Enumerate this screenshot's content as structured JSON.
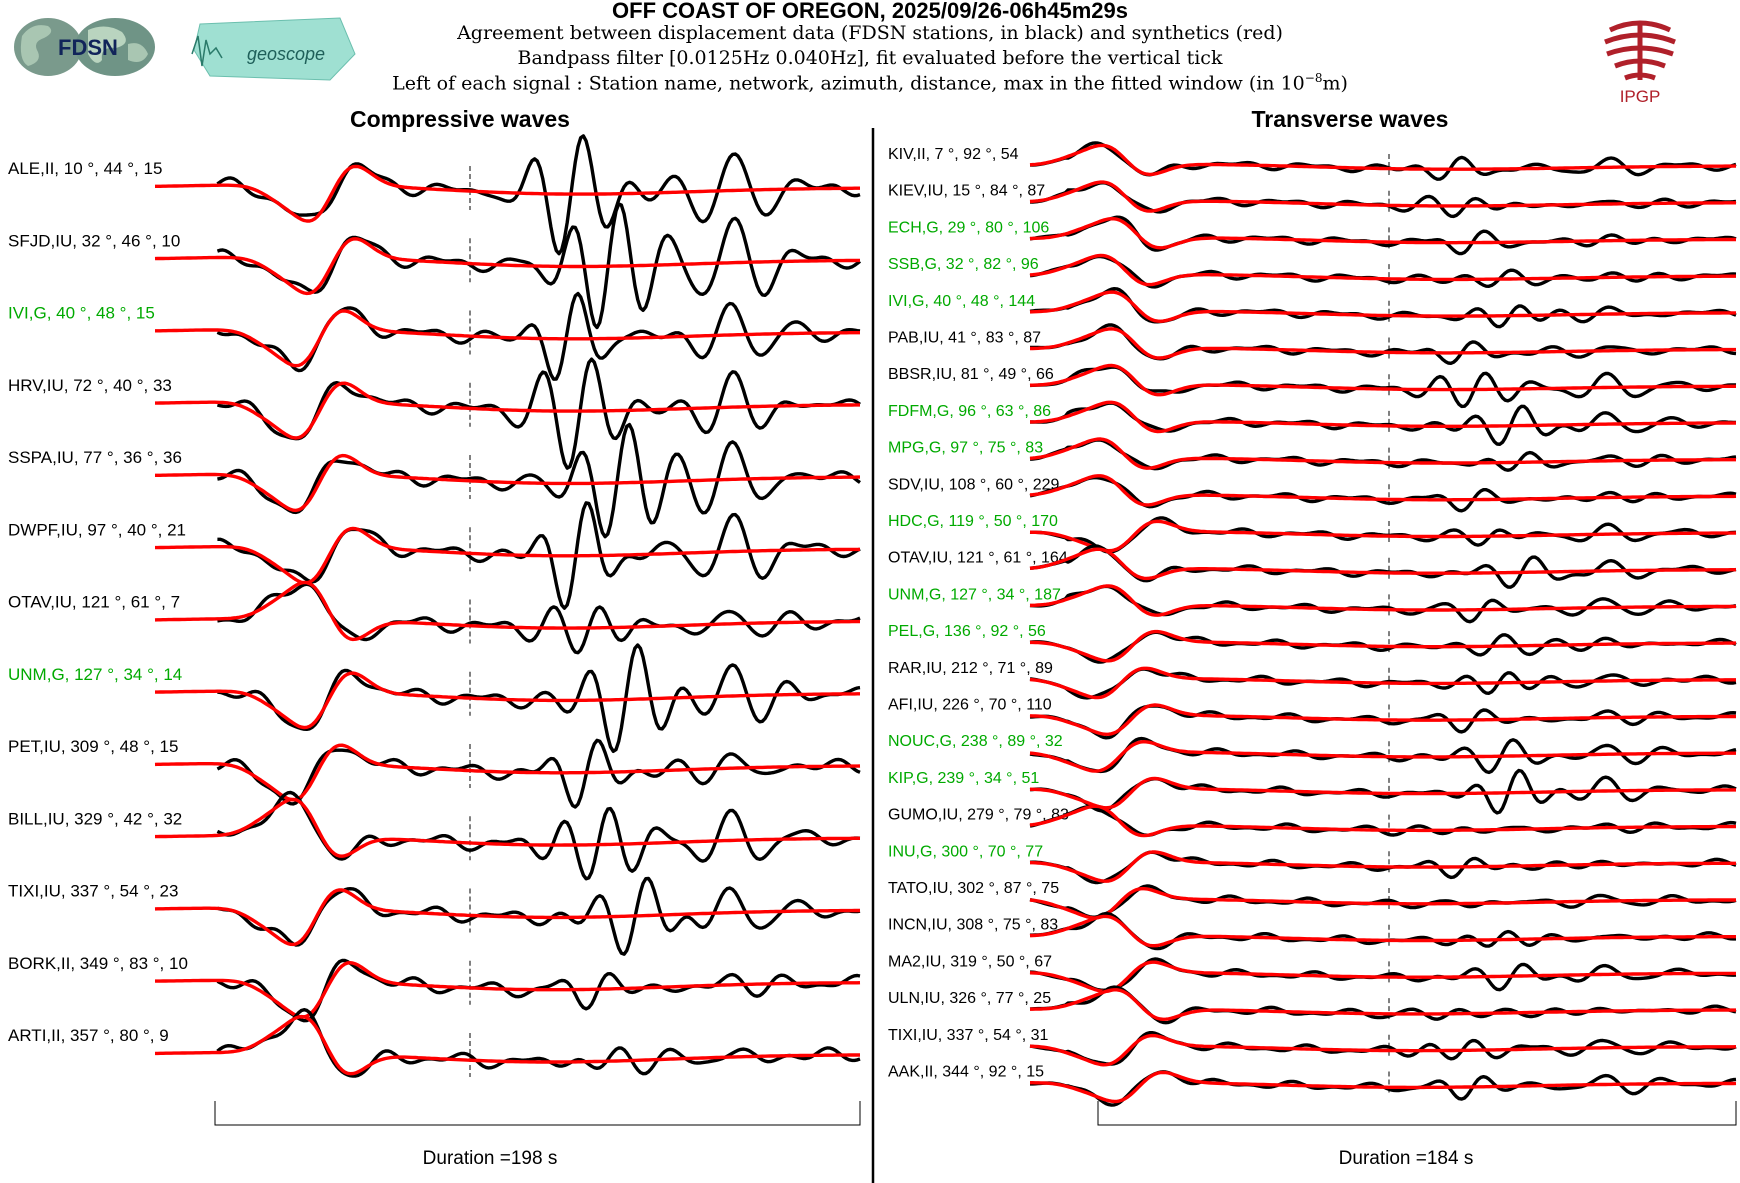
{
  "header": {
    "title": "OFF COAST OF OREGON, 2025/09/26-06h45m29s",
    "line1": "Agreement between displacement data (FDSN stations, in black) and synthetics (red)",
    "line2": "Bandpass filter [0.0125Hz 0.040Hz], fit evaluated before the vertical tick",
    "line3_prefix": "Left of each signal : Station name, network, azimuth, distance, max in the fitted window (in 10",
    "line3_exp": "−8",
    "line3_suffix": "m)"
  },
  "logos": {
    "fdsn": "FDSN",
    "geoscope": "geoscope",
    "ipgp": "IPGP"
  },
  "colors": {
    "data": "#000000",
    "synthetic": "#ff0000",
    "highlight_label": "#00aa00",
    "ipgp": "#b0202a",
    "geoscope": "#7fd6c6"
  },
  "panels": {
    "compressive": {
      "title": "Compressive waves",
      "duration_label": "Duration =198 s"
    },
    "transverse": {
      "title": "Transverse waves",
      "duration_label": "Duration =184 s"
    }
  },
  "chart_data": [
    {
      "type": "line",
      "title": "Compressive waves",
      "xlabel": "Duration =198 s",
      "duration_s": 198,
      "series_legend": [
        "data (black)",
        "synthetics (red)"
      ],
      "traces": [
        {
          "label": "ALE,II, 10 °, 44 °, 15",
          "station": "ALE",
          "network": "II",
          "azimuth": 10,
          "distance": 44,
          "max": 15,
          "green": false,
          "seed": 11,
          "late": 1.6
        },
        {
          "label": "SFJD,IU, 32 °, 46 °, 10",
          "station": "SFJD",
          "network": "IU",
          "azimuth": 32,
          "distance": 46,
          "max": 10,
          "green": false,
          "seed": 23,
          "late": 1.8
        },
        {
          "label": "IVI,G, 40 °, 48 °, 15",
          "station": "IVI",
          "network": "G",
          "azimuth": 40,
          "distance": 48,
          "max": 15,
          "green": true,
          "seed": 37,
          "late": 1.3
        },
        {
          "label": "HRV,IU, 72 °, 40 °, 33",
          "station": "HRV",
          "network": "IU",
          "azimuth": 72,
          "distance": 40,
          "max": 33,
          "green": false,
          "seed": 41,
          "late": 1.6
        },
        {
          "label": "SSPA,IU, 77 °, 36 °, 36",
          "station": "SSPA",
          "network": "IU",
          "azimuth": 77,
          "distance": 36,
          "max": 36,
          "green": false,
          "seed": 53,
          "late": 1.7
        },
        {
          "label": "DWPF,IU, 97 °, 40 °, 21",
          "station": "DWPF",
          "network": "IU",
          "azimuth": 97,
          "distance": 40,
          "max": 21,
          "green": false,
          "seed": 67,
          "late": 1.4
        },
        {
          "label": "OTAV,IU, 121 °, 61 °, 7",
          "station": "OTAV",
          "network": "IU",
          "azimuth": 121,
          "distance": 61,
          "max": 7,
          "green": false,
          "seed": 71,
          "late": 0.7
        },
        {
          "label": "UNM,G, 127 °, 34 °, 14",
          "station": "UNM",
          "network": "G",
          "azimuth": 127,
          "distance": 34,
          "max": 14,
          "green": true,
          "seed": 83,
          "late": 1.5
        },
        {
          "label": "PET,IU, 309 °, 48 °, 15",
          "station": "PET",
          "network": "IU",
          "azimuth": 309,
          "distance": 48,
          "max": 15,
          "green": false,
          "seed": 97,
          "late": 0.8
        },
        {
          "label": "BILL,IU, 329 °, 42 °, 32",
          "station": "BILL",
          "network": "IU",
          "azimuth": 329,
          "distance": 42,
          "max": 32,
          "green": false,
          "seed": 101,
          "late": 1.0
        },
        {
          "label": "TIXI,IU, 337 °, 54 °, 23",
          "station": "TIXI",
          "network": "IU",
          "azimuth": 337,
          "distance": 54,
          "max": 23,
          "green": false,
          "seed": 113,
          "late": 0.9
        },
        {
          "label": "BORK,II, 349 °, 83 °, 10",
          "station": "BORK",
          "network": "II",
          "azimuth": 349,
          "distance": 83,
          "max": 10,
          "green": false,
          "seed": 127,
          "late": 0.5
        },
        {
          "label": "ARTI,II, 357 °, 80 °, 9",
          "station": "ARTI",
          "network": "II",
          "azimuth": 357,
          "distance": 80,
          "max": 9,
          "green": false,
          "seed": 131,
          "late": 0.3
        }
      ]
    },
    {
      "type": "line",
      "title": "Transverse waves",
      "xlabel": "Duration =184 s",
      "duration_s": 184,
      "series_legend": [
        "data (black)",
        "synthetics (red)"
      ],
      "traces": [
        {
          "label": "KIV,II, 7 °, 92 °, 54",
          "station": "KIV",
          "network": "II",
          "azimuth": 7,
          "distance": 92,
          "max": 54,
          "green": false,
          "seed": 13,
          "late": 0.5
        },
        {
          "label": "KIEV,IU, 15 °, 84 °, 87",
          "station": "KIEV",
          "network": "IU",
          "azimuth": 15,
          "distance": 84,
          "max": 87,
          "green": false,
          "seed": 17,
          "late": 0.5
        },
        {
          "label": "ECH,G, 29 °, 80 °, 106",
          "station": "ECH",
          "network": "G",
          "azimuth": 29,
          "distance": 80,
          "max": 106,
          "green": true,
          "seed": 19,
          "late": 0.5
        },
        {
          "label": "SSB,G, 32 °, 82 °, 96",
          "station": "SSB",
          "network": "G",
          "azimuth": 32,
          "distance": 82,
          "max": 96,
          "green": true,
          "seed": 29,
          "late": 0.5
        },
        {
          "label": "IVI,G, 40 °, 48 °, 144",
          "station": "IVI",
          "network": "G",
          "azimuth": 40,
          "distance": 48,
          "max": 144,
          "green": true,
          "seed": 31,
          "late": 0.6
        },
        {
          "label": "PAB,IU, 41 °, 83 °, 87",
          "station": "PAB",
          "network": "IU",
          "azimuth": 41,
          "distance": 83,
          "max": 87,
          "green": false,
          "seed": 43,
          "late": 0.4
        },
        {
          "label": "BBSR,IU, 81 °, 49 °, 66",
          "station": "BBSR",
          "network": "IU",
          "azimuth": 81,
          "distance": 49,
          "max": 66,
          "green": false,
          "seed": 47,
          "late": 0.9
        },
        {
          "label": "FDFM,G, 96 °, 63 °, 86",
          "station": "FDFM",
          "network": "G",
          "azimuth": 96,
          "distance": 63,
          "max": 86,
          "green": true,
          "seed": 59,
          "late": 0.9
        },
        {
          "label": "MPG,G, 97 °, 75 °, 83",
          "station": "MPG",
          "network": "G",
          "azimuth": 97,
          "distance": 75,
          "max": 83,
          "green": true,
          "seed": 61,
          "late": 0.6
        },
        {
          "label": "SDV,IU, 108 °, 60 °, 229",
          "station": "SDV",
          "network": "IU",
          "azimuth": 108,
          "distance": 60,
          "max": 229,
          "green": false,
          "seed": 73,
          "late": 0.5
        },
        {
          "label": "HDC,G, 119 °, 50 °, 170",
          "station": "HDC",
          "network": "G",
          "azimuth": 119,
          "distance": 50,
          "max": 170,
          "green": true,
          "seed": 79,
          "late": 0.5
        },
        {
          "label": "OTAV,IU, 121 °, 61 °, 164",
          "station": "OTAV",
          "network": "IU",
          "azimuth": 121,
          "distance": 61,
          "max": 164,
          "green": false,
          "seed": 89,
          "late": 0.6
        },
        {
          "label": "UNM,G, 127 °, 34 °, 187",
          "station": "UNM",
          "network": "G",
          "azimuth": 127,
          "distance": 34,
          "max": 187,
          "green": true,
          "seed": 103,
          "late": 0.7
        },
        {
          "label": "PEL,G, 136 °, 92 °, 56",
          "station": "PEL",
          "network": "G",
          "azimuth": 136,
          "distance": 92,
          "max": 56,
          "green": true,
          "seed": 107,
          "late": 0.6
        },
        {
          "label": "RAR,IU, 212 °, 71 °, 89",
          "station": "RAR",
          "network": "IU",
          "azimuth": 212,
          "distance": 71,
          "max": 89,
          "green": false,
          "seed": 109,
          "late": 0.6
        },
        {
          "label": "AFI,IU, 226 °, 70 °, 110",
          "station": "AFI",
          "network": "IU",
          "azimuth": 226,
          "distance": 70,
          "max": 110,
          "green": false,
          "seed": 127,
          "late": 0.6
        },
        {
          "label": "NOUC,G, 238 °, 89 °, 32",
          "station": "NOUC",
          "network": "G",
          "azimuth": 238,
          "distance": 89,
          "max": 32,
          "green": true,
          "seed": 137,
          "late": 0.8
        },
        {
          "label": "KIP,G, 239 °, 34 °, 51",
          "station": "KIP",
          "network": "G",
          "azimuth": 239,
          "distance": 34,
          "max": 51,
          "green": true,
          "seed": 139,
          "late": 1.2
        },
        {
          "label": "GUMO,IU, 279 °, 79 °, 83",
          "station": "GUMO",
          "network": "IU",
          "azimuth": 279,
          "distance": 79,
          "max": 83,
          "green": false,
          "seed": 149,
          "late": 0.3
        },
        {
          "label": "INU,G, 300 °, 70 °, 77",
          "station": "INU",
          "network": "G",
          "azimuth": 300,
          "distance": 70,
          "max": 77,
          "green": true,
          "seed": 151,
          "late": 0.4
        },
        {
          "label": "TATO,IU, 302 °, 87 °, 75",
          "station": "TATO",
          "network": "IU",
          "azimuth": 302,
          "distance": 87,
          "max": 75,
          "green": false,
          "seed": 157,
          "late": 0.3
        },
        {
          "label": "INCN,IU, 308 °, 75 °, 83",
          "station": "INCN",
          "network": "IU",
          "azimuth": 308,
          "distance": 75,
          "max": 83,
          "green": false,
          "seed": 163,
          "late": 0.4
        },
        {
          "label": "MA2,IU, 319 °, 50 °, 67",
          "station": "MA2",
          "network": "IU",
          "azimuth": 319,
          "distance": 50,
          "max": 67,
          "green": false,
          "seed": 167,
          "late": 0.5
        },
        {
          "label": "ULN,IU, 326 °, 77 °, 25",
          "station": "ULN",
          "network": "IU",
          "azimuth": 326,
          "distance": 77,
          "max": 25,
          "green": false,
          "seed": 173,
          "late": 0.4
        },
        {
          "label": "TIXI,IU, 337 °, 54 °, 31",
          "station": "TIXI",
          "network": "IU",
          "azimuth": 337,
          "distance": 54,
          "max": 31,
          "green": false,
          "seed": 179,
          "late": 0.5
        },
        {
          "label": "AAK,II, 344 °, 92 °, 15",
          "station": "AAK",
          "network": "II",
          "azimuth": 344,
          "distance": 92,
          "max": 15,
          "green": false,
          "seed": 181,
          "late": 0.7
        }
      ]
    }
  ]
}
